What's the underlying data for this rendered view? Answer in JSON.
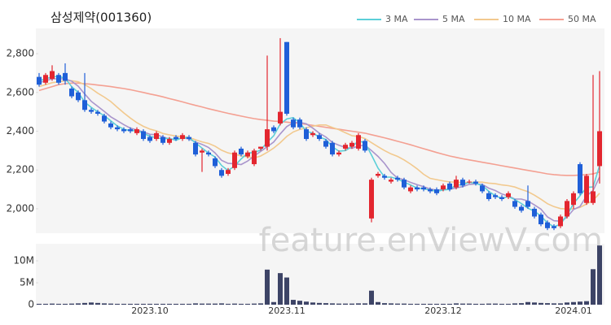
{
  "chart_data": {
    "type": "candlestick",
    "title": "삼성제약(001360)",
    "watermark": "feature.enViewV.com",
    "legend": "upper right",
    "grid": false,
    "up_color": "#e3262f",
    "down_color": "#1f5fd8",
    "categories": [
      null,
      null,
      null,
      null,
      null,
      null,
      null,
      null,
      null,
      null,
      null,
      null,
      null,
      null,
      null,
      null,
      null,
      "2023.10",
      null,
      null,
      null,
      null,
      null,
      null,
      null,
      null,
      null,
      null,
      null,
      null,
      null,
      null,
      null,
      null,
      null,
      null,
      null,
      null,
      "2023.11",
      null,
      null,
      null,
      null,
      null,
      null,
      null,
      null,
      null,
      null,
      null,
      null,
      null,
      null,
      null,
      null,
      null,
      null,
      null,
      null,
      null,
      null,
      null,
      "2023.12",
      null,
      null,
      null,
      null,
      null,
      null,
      null,
      null,
      null,
      null,
      null,
      null,
      null,
      null,
      null,
      null,
      null,
      null,
      null,
      "2024.01",
      null,
      null,
      null,
      null
    ],
    "open": [
      2680,
      2650,
      2670,
      2690,
      2700,
      2620,
      2600,
      2560,
      2510,
      2500,
      2480,
      2440,
      2420,
      2410,
      2410,
      2390,
      2400,
      2370,
      2360,
      2370,
      2340,
      2370,
      2360,
      2370,
      2340,
      2290,
      2290,
      2260,
      2200,
      2180,
      2210,
      2310,
      2270,
      2230,
      2310,
      2320,
      2420,
      2440,
      2860,
      2460,
      2460,
      2410,
      2380,
      2380,
      2350,
      2340,
      2280,
      2310,
      2320,
      2310,
      2350,
      1950,
      2170,
      2170,
      2140,
      2160,
      2150,
      2090,
      2110,
      2110,
      2100,
      2100,
      2100,
      2130,
      2110,
      2150,
      2140,
      2140,
      2120,
      2080,
      2070,
      2060,
      2060,
      2040,
      2010,
      2040,
      2000,
      1970,
      1930,
      1910,
      1910,
      1960,
      2020,
      2230,
      2030,
      2030,
      2220
    ],
    "high": [
      2700,
      2700,
      2740,
      2700,
      2750,
      2630,
      2610,
      2700,
      2520,
      2510,
      2490,
      2450,
      2430,
      2420,
      2420,
      2420,
      2410,
      2380,
      2400,
      2380,
      2370,
      2380,
      2390,
      2380,
      2350,
      2310,
      2300,
      2270,
      2210,
      2210,
      2300,
      2320,
      2300,
      2310,
      2320,
      2790,
      2430,
      2880,
      2860,
      2470,
      2470,
      2420,
      2400,
      2390,
      2360,
      2350,
      2300,
      2340,
      2350,
      2390,
      2360,
      2160,
      2190,
      2180,
      2160,
      2170,
      2160,
      2120,
      2120,
      2120,
      2110,
      2110,
      2130,
      2140,
      2170,
      2160,
      2150,
      2150,
      2130,
      2090,
      2080,
      2070,
      2090,
      2050,
      2020,
      2120,
      2010,
      1980,
      1940,
      1920,
      1970,
      2050,
      2090,
      2240,
      2180,
      2690,
      2710
    ],
    "low": [
      2630,
      2640,
      2660,
      2640,
      2640,
      2570,
      2550,
      2500,
      2490,
      2480,
      2440,
      2410,
      2400,
      2390,
      2390,
      2380,
      2350,
      2340,
      2350,
      2330,
      2330,
      2350,
      2350,
      2350,
      2270,
      2190,
      2270,
      2210,
      2160,
      2170,
      2200,
      2270,
      2260,
      2220,
      2300,
      2300,
      2390,
      2430,
      2480,
      2410,
      2410,
      2350,
      2370,
      2350,
      2310,
      2270,
      2270,
      2300,
      2310,
      2300,
      2290,
      1930,
      2160,
      2150,
      2130,
      2140,
      2100,
      2080,
      2090,
      2090,
      2080,
      2070,
      2090,
      2090,
      2100,
      2110,
      2130,
      2120,
      2080,
      2040,
      2050,
      2040,
      2050,
      2000,
      1980,
      2000,
      1950,
      1910,
      1890,
      1890,
      1900,
      1950,
      2000,
      2070,
      2020,
      2020,
      2130
    ],
    "close": [
      2640,
      2690,
      2710,
      2650,
      2660,
      2580,
      2560,
      2510,
      2500,
      2490,
      2450,
      2420,
      2410,
      2400,
      2400,
      2410,
      2360,
      2350,
      2390,
      2340,
      2360,
      2360,
      2380,
      2360,
      2280,
      2300,
      2280,
      2220,
      2170,
      2200,
      2290,
      2280,
      2290,
      2300,
      2320,
      2410,
      2400,
      2500,
      2490,
      2420,
      2420,
      2360,
      2390,
      2360,
      2320,
      2280,
      2290,
      2330,
      2340,
      2380,
      2300,
      2150,
      2180,
      2160,
      2150,
      2150,
      2110,
      2110,
      2100,
      2100,
      2090,
      2080,
      2120,
      2100,
      2150,
      2120,
      2140,
      2130,
      2090,
      2050,
      2060,
      2050,
      2080,
      2010,
      1990,
      2010,
      1960,
      1920,
      1900,
      1900,
      1960,
      2040,
      2080,
      2080,
      2170,
      2090,
      2400
    ],
    "ylim": [
      1874,
      2930
    ],
    "yticks": [
      {
        "value": 2000,
        "label": "2,000"
      },
      {
        "value": 2200,
        "label": "2,200"
      },
      {
        "value": 2400,
        "label": "2,400"
      },
      {
        "value": 2600,
        "label": "2,600"
      },
      {
        "value": 2800,
        "label": "2,800"
      }
    ],
    "series": [
      {
        "name": "3 MA",
        "color": "#5ccfd8",
        "values": [
          2660,
          2670,
          2680,
          2683,
          2673,
          2630,
          2600,
          2550,
          2523,
          2500,
          2480,
          2453,
          2427,
          2410,
          2403,
          2403,
          2390,
          2373,
          2367,
          2360,
          2363,
          2353,
          2367,
          2367,
          2340,
          2313,
          2287,
          2267,
          2223,
          2197,
          2220,
          2257,
          2287,
          2290,
          2303,
          2343,
          2377,
          2437,
          2463,
          2470,
          2443,
          2400,
          2390,
          2370,
          2357,
          2320,
          2297,
          2300,
          2320,
          2350,
          2340,
          2277,
          2210,
          2163,
          2163,
          2153,
          2137,
          2123,
          2107,
          2103,
          2097,
          2090,
          2097,
          2100,
          2123,
          2123,
          2137,
          2130,
          2120,
          2090,
          2067,
          2053,
          2063,
          2047,
          2027,
          2003,
          1987,
          1963,
          1927,
          1907,
          1920,
          1967,
          2027,
          2067,
          2110,
          2113,
          2223
        ]
      },
      {
        "name": "5 MA",
        "color": "#a995cc",
        "values": [
          2650,
          2660,
          2670,
          2670,
          2670,
          2658,
          2632,
          2592,
          2554,
          2528,
          2502,
          2474,
          2454,
          2434,
          2416,
          2406,
          2396,
          2384,
          2382,
          2370,
          2360,
          2358,
          2366,
          2360,
          2344,
          2332,
          2316,
          2288,
          2250,
          2234,
          2232,
          2228,
          2246,
          2272,
          2296,
          2320,
          2344,
          2386,
          2424,
          2444,
          2446,
          2438,
          2416,
          2390,
          2370,
          2342,
          2328,
          2316,
          2312,
          2324,
          2328,
          2300,
          2270,
          2234,
          2188,
          2158,
          2150,
          2136,
          2124,
          2114,
          2102,
          2096,
          2100,
          2100,
          2108,
          2114,
          2126,
          2128,
          2126,
          2106,
          2094,
          2076,
          2066,
          2050,
          2050,
          2040,
          2020,
          1998,
          1958,
          1938,
          1936,
          1956,
          1996,
          2012,
          2066,
          2094,
          2164
        ]
      },
      {
        "name": "10 MA",
        "color": "#f2c98e",
        "values": [
          2630,
          2640,
          2650,
          2655,
          2660,
          2660,
          2655,
          2640,
          2620,
          2596,
          2576,
          2553,
          2523,
          2494,
          2468,
          2444,
          2425,
          2411,
          2402,
          2388,
          2381,
          2375,
          2372,
          2368,
          2356,
          2345,
          2337,
          2323,
          2302,
          2288,
          2281,
          2273,
          2268,
          2262,
          2272,
          2291,
          2313,
          2341,
          2373,
          2396,
          2409,
          2417,
          2426,
          2432,
          2432,
          2419,
          2408,
          2392,
          2377,
          2373,
          2362,
          2341,
          2320,
          2300,
          2283,
          2270,
          2252,
          2230,
          2206,
          2178,
          2157,
          2150,
          2144,
          2138,
          2138,
          2135,
          2136,
          2138,
          2137,
          2132,
          2129,
          2123,
          2119,
          2112,
          2099,
          2088,
          2070,
          2049,
          2026,
          2011,
          2001,
          1999,
          1999,
          2007,
          2025,
          2043,
          2080
        ]
      },
      {
        "name": "50 MA",
        "color": "#f4a092",
        "values": [
          2610,
          2620,
          2630,
          2640,
          2645,
          2648,
          2648,
          2645,
          2642,
          2638,
          2634,
          2630,
          2625,
          2620,
          2614,
          2607,
          2600,
          2592,
          2585,
          2577,
          2568,
          2560,
          2551,
          2542,
          2533,
          2525,
          2516,
          2508,
          2500,
          2492,
          2485,
          2478,
          2471,
          2465,
          2460,
          2456,
          2452,
          2450,
          2447,
          2443,
          2440,
          2435,
          2430,
          2425,
          2420,
          2415,
          2410,
          2405,
          2400,
          2395,
          2390,
          2382,
          2374,
          2366,
          2357,
          2348,
          2339,
          2330,
          2320,
          2310,
          2300,
          2290,
          2281,
          2272,
          2265,
          2258,
          2252,
          2246,
          2240,
          2234,
          2228,
          2222,
          2216,
          2210,
          2204,
          2198,
          2192,
          2186,
          2180,
          2176,
          2173,
          2172,
          2172,
          2174,
          2176,
          2180,
          2190
        ]
      }
    ],
    "volume": {
      "color": "#3d4466",
      "ylim": [
        0,
        13900000
      ],
      "yticks": [
        0,
        {
          "value": 5000000,
          "label": "5M"
        },
        {
          "value": 10000000,
          "label": "10M"
        }
      ],
      "values": [
        200000,
        200000,
        250000,
        200000,
        200000,
        250000,
        300000,
        400000,
        500000,
        400000,
        300000,
        250000,
        200000,
        200000,
        200000,
        200000,
        200000,
        200000,
        200000,
        200000,
        200000,
        200000,
        200000,
        200000,
        300000,
        250000,
        250000,
        250000,
        300000,
        200000,
        250000,
        200000,
        200000,
        250000,
        300000,
        8000000,
        600000,
        7200000,
        6200000,
        1100000,
        900000,
        700000,
        500000,
        400000,
        350000,
        300000,
        250000,
        250000,
        250000,
        300000,
        300000,
        3200000,
        600000,
        350000,
        300000,
        250000,
        250000,
        200000,
        200000,
        200000,
        200000,
        200000,
        200000,
        200000,
        300000,
        250000,
        250000,
        200000,
        200000,
        250000,
        250000,
        200000,
        200000,
        300000,
        350000,
        600000,
        500000,
        400000,
        350000,
        300000,
        300000,
        500000,
        600000,
        700000,
        800000,
        8100000,
        13500000
      ]
    }
  }
}
